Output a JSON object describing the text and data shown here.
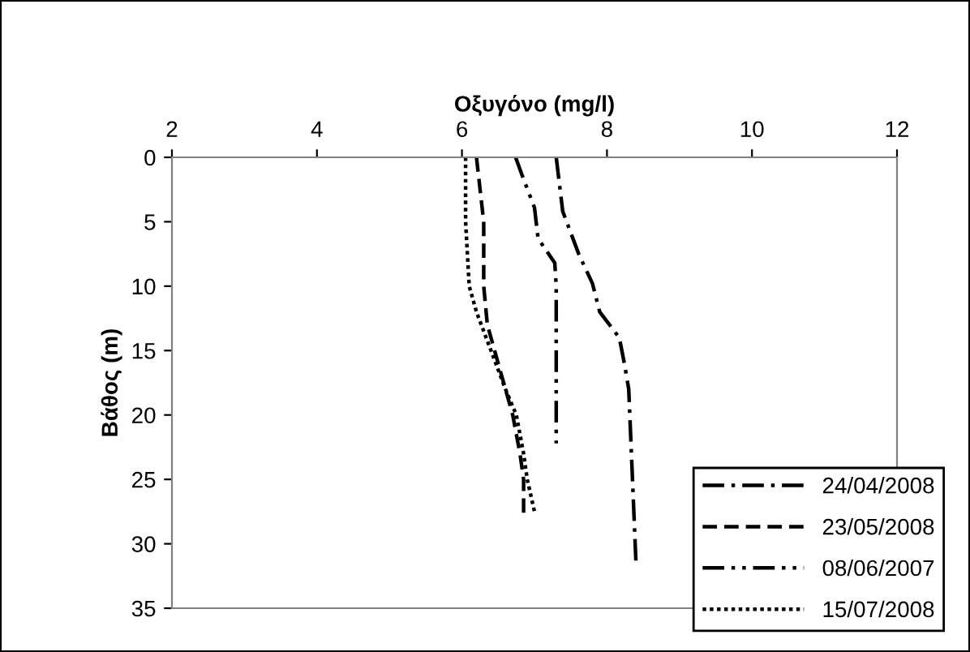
{
  "chart_data": {
    "type": "line",
    "xlabel": "Οξυγόνο (mg/l)",
    "ylabel": "Βάθος (m)",
    "xlim": [
      2,
      12
    ],
    "xticks": [
      2,
      4,
      6,
      8,
      10,
      12
    ],
    "ylim": [
      35,
      0
    ],
    "yticks": [
      0,
      5,
      10,
      15,
      20,
      25,
      30,
      35
    ],
    "grid": false,
    "legend": "bottom right",
    "marker": "none",
    "series": [
      {
        "name": "24/04/2008",
        "color": "#000000",
        "line_style": "dashdot",
        "x": [
          7.3,
          7.39,
          7.61,
          7.8,
          7.9,
          8.17,
          8.24,
          8.3,
          8.4
        ],
        "values": [
          0,
          4.2,
          7.5,
          9.8,
          12,
          14,
          16,
          18,
          31.5
        ]
      },
      {
        "name": "23/05/2008",
        "color": "#000000",
        "line_style": "dashed",
        "x": [
          6.2,
          6.3,
          6.3,
          6.35,
          6.45,
          6.6,
          6.7,
          6.8,
          6.85,
          6.85
        ],
        "values": [
          0,
          5,
          10,
          13,
          15,
          18,
          20,
          23,
          25,
          27.7
        ]
      },
      {
        "name": "08/06/2007",
        "color": "#000000",
        "line_style": "dashdotdot",
        "x": [
          6.74,
          6.83,
          7.0,
          7.05,
          7.28,
          7.3,
          7.3
        ],
        "values": [
          0,
          1.4,
          3.9,
          6.3,
          8.2,
          10,
          22.2
        ]
      },
      {
        "name": "15/07/2008",
        "color": "#000000",
        "line_style": "dotted",
        "x": [
          6.05,
          6.05,
          6.1,
          6.2,
          6.4,
          6.6,
          6.75,
          6.85,
          6.9,
          7.0
        ],
        "values": [
          0,
          5,
          10,
          12,
          15,
          18,
          20,
          23,
          25,
          27.5
        ]
      }
    ]
  }
}
